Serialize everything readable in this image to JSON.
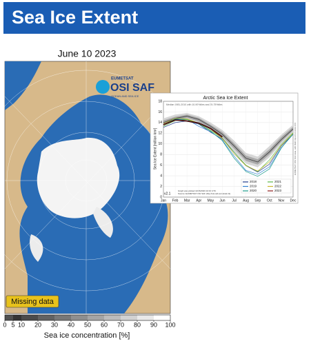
{
  "header": {
    "title": "Sea Ice Extent"
  },
  "map": {
    "title": "June 10 2023",
    "logo": {
      "org": "EUMETSAT",
      "name": "OSI SAF",
      "tagline": "OCEAN AND SEA ICE"
    },
    "missing_label": "Missing data",
    "colorbar": {
      "ticks": [
        0,
        5,
        10,
        20,
        30,
        40,
        50,
        60,
        70,
        80,
        90,
        100
      ],
      "label": "Sea ice concentration [%]"
    }
  },
  "chart_data": {
    "type": "line",
    "title": "Arctic Sea Ice Extent",
    "subtitle": "Median 1981-2010 with 10-90%tiles and 25-75%tiles",
    "y_label": "Sea Ice Extent [million km²]",
    "version": "v2.1",
    "notes": [
      "Graph was plotted 11/06/2023 10:02 UTC",
      "Source: EUMETSAT OSI SAF (http://osi-saf.eumetsat.int)"
    ],
    "side_note": "EUMETSAT OSI SAF data, with R&D input from ESA CCI",
    "categories": [
      "Jan",
      "Feb",
      "Mar",
      "Apr",
      "May",
      "Jun",
      "Jul",
      "Aug",
      "Sep",
      "Oct",
      "Nov",
      "Dec"
    ],
    "ylim": [
      0,
      18
    ],
    "yticks": [
      0,
      2,
      4,
      6,
      8,
      10,
      12,
      14,
      16,
      18
    ],
    "grid": true,
    "range_10_90": {
      "low": [
        13.3,
        14.2,
        14.5,
        13.8,
        12.5,
        10.9,
        8.5,
        6.3,
        5.6,
        7.5,
        10.0,
        12.1
      ],
      "high": [
        14.8,
        15.5,
        15.8,
        15.2,
        14.0,
        12.6,
        10.6,
        8.3,
        7.6,
        9.6,
        11.7,
        13.6
      ]
    },
    "range_25_75": {
      "low": [
        13.7,
        14.5,
        14.9,
        14.2,
        12.9,
        11.4,
        9.1,
        6.8,
        6.1,
        8.0,
        10.4,
        12.5
      ],
      "high": [
        14.4,
        15.1,
        15.5,
        14.9,
        13.6,
        12.2,
        10.1,
        7.8,
        7.1,
        9.0,
        11.3,
        13.2
      ]
    },
    "median": {
      "color": "#444444",
      "values": [
        14.0,
        14.8,
        15.2,
        14.6,
        13.3,
        11.8,
        9.6,
        7.3,
        6.6,
        8.5,
        10.8,
        12.8
      ]
    },
    "legend": "lower right",
    "series": [
      {
        "name": "2018",
        "color": "#1f3b8c",
        "values": [
          13.1,
          14.0,
          14.3,
          13.7,
          12.2,
          10.9,
          8.4,
          5.9,
          4.7,
          6.2,
          9.6,
          11.8
        ]
      },
      {
        "name": "2019",
        "color": "#2f7fd0",
        "values": [
          13.6,
          14.6,
          14.6,
          13.3,
          12.3,
          10.7,
          7.7,
          5.0,
          4.3,
          5.7,
          9.3,
          11.8
        ]
      },
      {
        "name": "2020",
        "color": "#1a9a8a",
        "values": [
          13.6,
          14.7,
          14.7,
          13.8,
          12.4,
          10.6,
          7.3,
          4.8,
          3.9,
          5.3,
          9.2,
          11.9
        ]
      },
      {
        "name": "2021",
        "color": "#5ab848",
        "values": [
          13.3,
          14.4,
          14.6,
          13.8,
          12.5,
          11.1,
          8.4,
          6.0,
          4.8,
          7.0,
          9.9,
          12.1
        ]
      },
      {
        "name": "2022",
        "color": "#c9b62a",
        "values": [
          13.8,
          14.8,
          14.7,
          13.9,
          12.8,
          11.0,
          8.1,
          5.9,
          4.9,
          6.6,
          9.7,
          12.0
        ]
      },
      {
        "name": "2023",
        "color": "#8b1a1a",
        "values": [
          13.6,
          14.5,
          14.3,
          13.9,
          12.9,
          11.3,
          null,
          null,
          null,
          null,
          null,
          null
        ]
      }
    ]
  }
}
